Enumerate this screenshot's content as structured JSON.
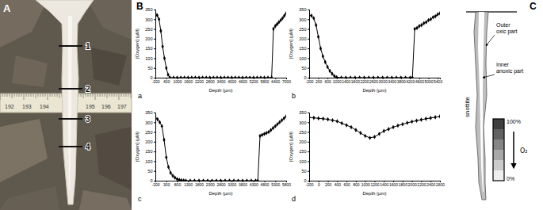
{
  "chart_data": [
    {
      "type": "line",
      "title": "a",
      "x_label": "Depth (µm)",
      "y_label": "[Oxygen] (µM)",
      "x": [
        -200,
        -100,
        0,
        100,
        200,
        300,
        400,
        500,
        600,
        800,
        1000,
        1200,
        1400,
        1600,
        1800,
        2000,
        2200,
        2400,
        2600,
        2800,
        3000,
        3200,
        3400,
        3600,
        3800,
        4000,
        4200,
        4400,
        4600,
        4800,
        5000,
        5200,
        5400,
        5600,
        5800,
        6000,
        6200,
        6300,
        6400,
        6500,
        6600,
        6700,
        6800,
        6900,
        7000
      ],
      "values": [
        330,
        320,
        300,
        240,
        160,
        100,
        50,
        15,
        0,
        0,
        0,
        0,
        0,
        0,
        0,
        0,
        0,
        0,
        0,
        0,
        0,
        0,
        0,
        0,
        0,
        0,
        0,
        0,
        0,
        0,
        0,
        0,
        0,
        0,
        0,
        0,
        0,
        250,
        265,
        275,
        285,
        295,
        305,
        318,
        330
      ],
      "color": "#000000",
      "marker": "diamond",
      "grid": false,
      "xlim": [
        -200,
        7000
      ],
      "xticks": [
        -200,
        400,
        1000,
        1600,
        2200,
        2800,
        3400,
        4000,
        4600,
        5200,
        5800,
        6400,
        7000
      ],
      "ylim": [
        0,
        350
      ],
      "yticks": [
        0,
        50,
        100,
        150,
        200,
        250,
        300,
        350
      ]
    },
    {
      "type": "line",
      "title": "b",
      "x_label": "Depth (µm)",
      "y_label": "[Oxygen] (µM)",
      "x": [
        -200,
        -100,
        0,
        100,
        200,
        300,
        400,
        500,
        600,
        700,
        800,
        900,
        1000,
        1200,
        1400,
        1600,
        1800,
        2000,
        2200,
        2400,
        2600,
        2800,
        3000,
        3200,
        3400,
        3600,
        3800,
        4000,
        4200,
        4300,
        4400,
        4500,
        4600,
        4700,
        4800,
        4900,
        5000,
        5100,
        5200,
        5300,
        5400,
        5500
      ],
      "values": [
        320,
        318,
        305,
        270,
        210,
        150,
        110,
        80,
        55,
        35,
        20,
        8,
        2,
        0,
        0,
        0,
        0,
        0,
        0,
        0,
        0,
        0,
        0,
        0,
        0,
        0,
        0,
        0,
        0,
        0,
        250,
        255,
        265,
        270,
        280,
        285,
        295,
        300,
        310,
        315,
        325,
        330
      ],
      "color": "#000000",
      "marker": "diamond",
      "grid": false,
      "xlim": [
        -200,
        5500
      ],
      "xticks": [
        -200,
        200,
        600,
        1000,
        1400,
        1800,
        2200,
        2600,
        3000,
        3400,
        3800,
        4200,
        4600,
        5000,
        5400
      ],
      "ylim": [
        0,
        350
      ],
      "yticks": [
        0,
        50,
        100,
        150,
        200,
        250,
        300,
        350
      ]
    },
    {
      "type": "line",
      "title": "c",
      "x_label": "Depth (µm)",
      "y_label": "[Oxygen] (µM)",
      "x": [
        -200,
        -100,
        0,
        100,
        200,
        300,
        400,
        500,
        600,
        700,
        800,
        900,
        1000,
        1100,
        1200,
        1400,
        1600,
        1800,
        2000,
        2200,
        2400,
        2600,
        2800,
        3000,
        3200,
        3400,
        3600,
        3800,
        4000,
        4200,
        4400,
        4500,
        4600,
        4700,
        4800,
        4900,
        5000,
        5100,
        5200,
        5300,
        5400,
        5500,
        5600,
        5700,
        5800
      ],
      "values": [
        325,
        315,
        300,
        280,
        210,
        120,
        70,
        40,
        25,
        15,
        8,
        4,
        2,
        1,
        0,
        0,
        0,
        0,
        0,
        0,
        0,
        0,
        0,
        0,
        0,
        0,
        0,
        0,
        0,
        0,
        0,
        0,
        230,
        235,
        240,
        245,
        250,
        260,
        270,
        280,
        290,
        300,
        310,
        320,
        330
      ],
      "color": "#000000",
      "marker": "diamond",
      "grid": false,
      "xlim": [
        -200,
        5800
      ],
      "xticks": [
        -200,
        300,
        800,
        1300,
        1800,
        2300,
        2800,
        3300,
        3800,
        4300,
        4800,
        5300,
        5800
      ],
      "ylim": [
        0,
        350
      ],
      "yticks": [
        0,
        50,
        100,
        150,
        200,
        250,
        300,
        350
      ]
    },
    {
      "type": "line",
      "title": "d",
      "x_label": "Depth (µm)",
      "y_label": "[Oxygen] (µM)",
      "x": [
        -200,
        -100,
        0,
        100,
        200,
        300,
        400,
        500,
        600,
        700,
        800,
        900,
        1000,
        1100,
        1200,
        1300,
        1400,
        1500,
        1600,
        1700,
        1800,
        1900,
        2000,
        2100,
        2200,
        2300,
        2400,
        2500,
        2600
      ],
      "values": [
        325,
        323,
        320,
        318,
        315,
        310,
        305,
        295,
        285,
        275,
        260,
        245,
        230,
        220,
        225,
        240,
        255,
        265,
        275,
        283,
        290,
        297,
        303,
        308,
        313,
        318,
        322,
        326,
        330
      ],
      "color": "#000000",
      "marker": "diamond",
      "grid": false,
      "xlim": [
        -200,
        2600
      ],
      "xticks": [
        -200,
        0,
        200,
        400,
        600,
        800,
        1000,
        1200,
        1400,
        1600,
        1800,
        2000,
        2200,
        2400,
        2600
      ],
      "ylim": [
        0,
        350
      ],
      "yticks": [
        0,
        50,
        100,
        150,
        200,
        250,
        300,
        350
      ]
    }
  ],
  "panels": {
    "A": {
      "label": "A",
      "section_labels": [
        "1",
        "2",
        "3",
        "4"
      ],
      "ruler_labels": [
        "192",
        "193",
        "194",
        "195",
        "196",
        "197"
      ]
    },
    "B": {
      "label": "B"
    },
    "C": {
      "label": "C",
      "annotations": [
        "Outer oxic part",
        "Inner anoxic part"
      ],
      "object_label": "snottite",
      "colorbar": {
        "ticks": [
          {
            "value": 100,
            "label": "100%"
          },
          {
            "value": 0,
            "label": "0%"
          }
        ],
        "title": "O₂"
      }
    }
  }
}
